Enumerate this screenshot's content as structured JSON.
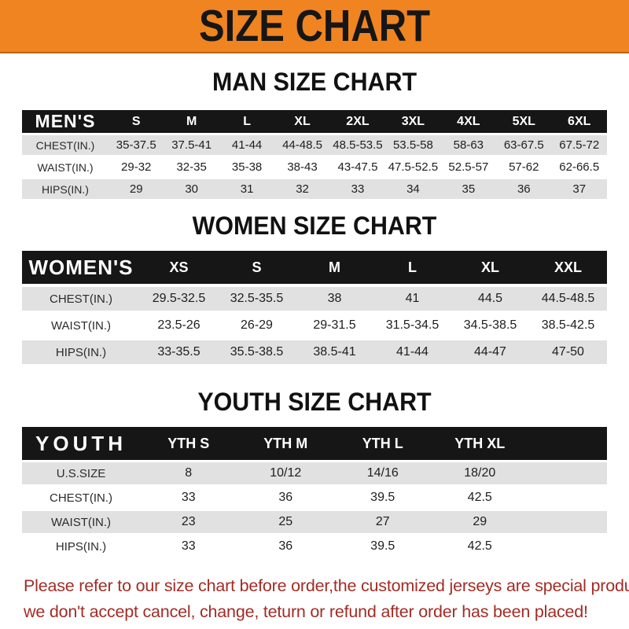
{
  "banner": {
    "title": "SIZE CHART"
  },
  "colors": {
    "banner_bg": "#F08420",
    "header_bar": "#161616",
    "row_stripe": "#E1E1E1",
    "footer_text": "#A12D26"
  },
  "sections": [
    {
      "heading": "MAN SIZE CHART",
      "table": {
        "header_label": "MEN'S",
        "sizes": [
          "S",
          "M",
          "L",
          "XL",
          "2XL",
          "3XL",
          "4XL",
          "5XL",
          "6XL"
        ],
        "rows": [
          {
            "label": "CHEST(IN.)",
            "values": [
              "35-37.5",
              "37.5-41",
              "41-44",
              "44-48.5",
              "48.5-53.5",
              "53.5-58",
              "58-63",
              "63-67.5",
              "67.5-72"
            ]
          },
          {
            "label": "WAIST(IN.)",
            "values": [
              "29-32",
              "32-35",
              "35-38",
              "38-43",
              "43-47.5",
              "47.5-52.5",
              "52.5-57",
              "57-62",
              "62-66.5"
            ]
          },
          {
            "label": "HIPS(IN.)",
            "values": [
              "29",
              "30",
              "31",
              "32",
              "33",
              "34",
              "35",
              "36",
              "37"
            ]
          }
        ]
      }
    },
    {
      "heading": "WOMEN SIZE CHART",
      "table": {
        "header_label": "WOMEN'S",
        "sizes": [
          "XS",
          "S",
          "M",
          "L",
          "XL",
          "XXL"
        ],
        "rows": [
          {
            "label": "CHEST(IN.)",
            "values": [
              "29.5-32.5",
              "32.5-35.5",
              "38",
              "41",
              "44.5",
              "44.5-48.5"
            ]
          },
          {
            "label": "WAIST(IN.)",
            "values": [
              "23.5-26",
              "26-29",
              "29-31.5",
              "31.5-34.5",
              "34.5-38.5",
              "38.5-42.5"
            ]
          },
          {
            "label": "HIPS(IN.)",
            "values": [
              "33-35.5",
              "35.5-38.5",
              "38.5-41",
              "41-44",
              "44-47",
              "47-50"
            ]
          }
        ]
      }
    },
    {
      "heading": "YOUTH SIZE CHART",
      "table": {
        "header_label": "YOUTH",
        "sizes": [
          "YTH S",
          "YTH M",
          "YTH L",
          "YTH XL"
        ],
        "rows": [
          {
            "label": "U.S.SIZE",
            "values": [
              "8",
              "10/12",
              "14/16",
              "18/20"
            ]
          },
          {
            "label": "CHEST(IN.)",
            "values": [
              "33",
              "36",
              "39.5",
              "42.5"
            ]
          },
          {
            "label": "WAIST(IN.)",
            "values": [
              "23",
              "25",
              "27",
              "29"
            ]
          },
          {
            "label": "HIPS(IN.)",
            "values": [
              "33",
              "36",
              "39.5",
              "42.5"
            ]
          }
        ]
      }
    }
  ],
  "footer": {
    "line1": "Please refer to our size chart before order,the customized jerseys are special products,",
    "line2": "we don't accept cancel, change, teturn or refund after order has been placed!"
  }
}
